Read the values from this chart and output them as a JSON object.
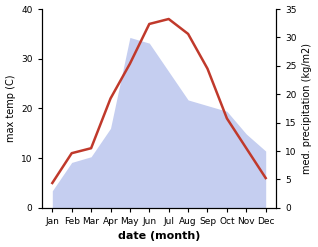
{
  "months": [
    "Jan",
    "Feb",
    "Mar",
    "Apr",
    "May",
    "Jun",
    "Jul",
    "Aug",
    "Sep",
    "Oct",
    "Nov",
    "Dec"
  ],
  "temperature": [
    5,
    11,
    12,
    22,
    29,
    37,
    38,
    35,
    28,
    18,
    12,
    6
  ],
  "precipitation": [
    3,
    8,
    9,
    14,
    30,
    29,
    24,
    19,
    18,
    17,
    13,
    10
  ],
  "temp_color": "#c0392b",
  "precip_fill_color": "#c5cef0",
  "temp_ylim": [
    0,
    40
  ],
  "precip_ylim": [
    0,
    35
  ],
  "temp_yticks": [
    0,
    10,
    20,
    30,
    40
  ],
  "precip_yticks": [
    0,
    5,
    10,
    15,
    20,
    25,
    30,
    35
  ],
  "xlabel": "date (month)",
  "ylabel_left": "max temp (C)",
  "ylabel_right": "med. precipitation (kg/m2)",
  "temp_linewidth": 1.8,
  "label_fontsize": 7,
  "tick_fontsize": 6.5,
  "xlabel_fontsize": 8,
  "background_color": "#ffffff"
}
